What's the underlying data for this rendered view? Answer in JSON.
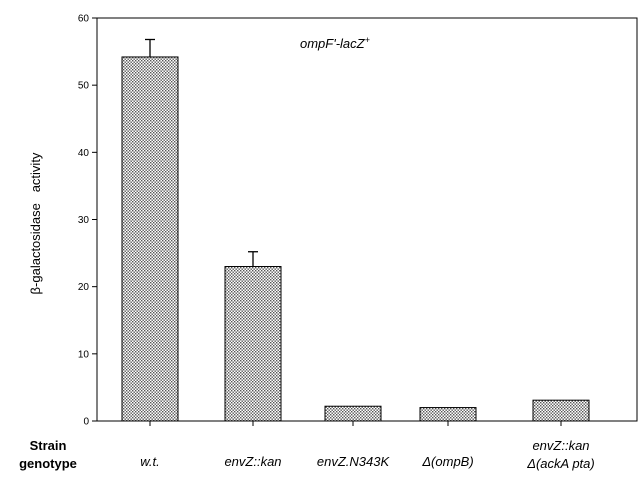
{
  "chart_data": {
    "type": "bar",
    "title": "",
    "annotation": {
      "main": "ompF'-lacZ",
      "sup": "+"
    },
    "xlabel_lines": [
      "Strain",
      "genotype"
    ],
    "ylabel": "β-galactosidase   activity",
    "ylim": [
      0,
      60
    ],
    "yticks": [
      0,
      10,
      20,
      30,
      40,
      50,
      60
    ],
    "categories": [
      [
        "w.t."
      ],
      [
        "envZ::kan"
      ],
      [
        "envZ.N343K"
      ],
      [
        "Δ(ompB)"
      ],
      [
        "envZ::kan",
        "Δ(ackA pta)"
      ]
    ],
    "values": [
      54.2,
      23.0,
      2.2,
      2.0,
      3.1
    ],
    "errors": [
      2.6,
      2.2,
      null,
      null,
      null
    ],
    "grid": false,
    "bar_fill": "#c8c8c8",
    "bar_stroke": "#000000"
  }
}
